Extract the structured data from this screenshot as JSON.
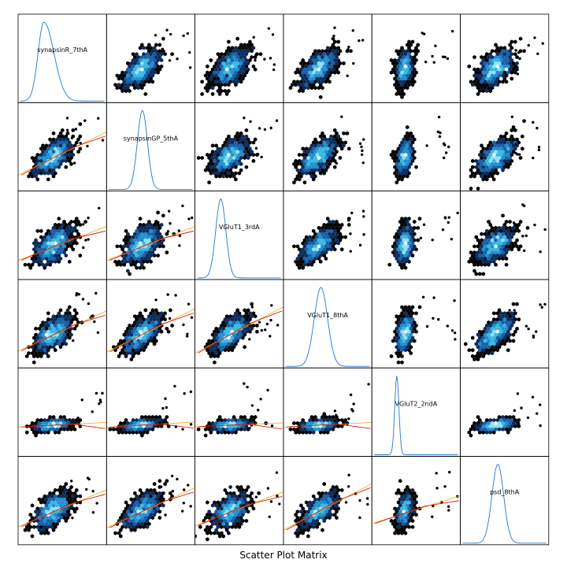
{
  "chart_data": {
    "type": "scatter",
    "subtype": "scatter-plot-matrix",
    "title": "Scatter Plot Matrix",
    "variables": [
      "synapsinR_7thA",
      "synapsinGP_5thA",
      "VGluT1_3rdA",
      "VGluT1_8thA",
      "VGluT2_2ndA",
      "psd_8thA"
    ],
    "diagonal": "density",
    "upper_panels": "hexbin-density",
    "lower_panels": "hexbin-density-with-fits",
    "fit_lines": [
      {
        "name": "linear",
        "color": "#ffa500"
      },
      {
        "name": "smooth",
        "color": "#d40000"
      }
    ],
    "density_colormap": [
      "#000000",
      "#0a2a5a",
      "#1560a8",
      "#1f8fd0",
      "#3ab8e0",
      "#8fe0f4",
      "#e8f8fc"
    ],
    "density_line_color": "#1f77d4",
    "correlations": [
      [
        1.0,
        0.7,
        0.55,
        0.65,
        0.35,
        0.6
      ],
      [
        0.7,
        1.0,
        0.55,
        0.7,
        0.4,
        0.65
      ],
      [
        0.55,
        0.55,
        1.0,
        0.75,
        0.3,
        0.55
      ],
      [
        0.65,
        0.7,
        0.75,
        1.0,
        0.35,
        0.75
      ],
      [
        0.35,
        0.4,
        0.3,
        0.35,
        1.0,
        0.45
      ],
      [
        0.6,
        0.65,
        0.55,
        0.75,
        0.45,
        1.0
      ]
    ],
    "grid": false,
    "axis_ticks": false
  }
}
